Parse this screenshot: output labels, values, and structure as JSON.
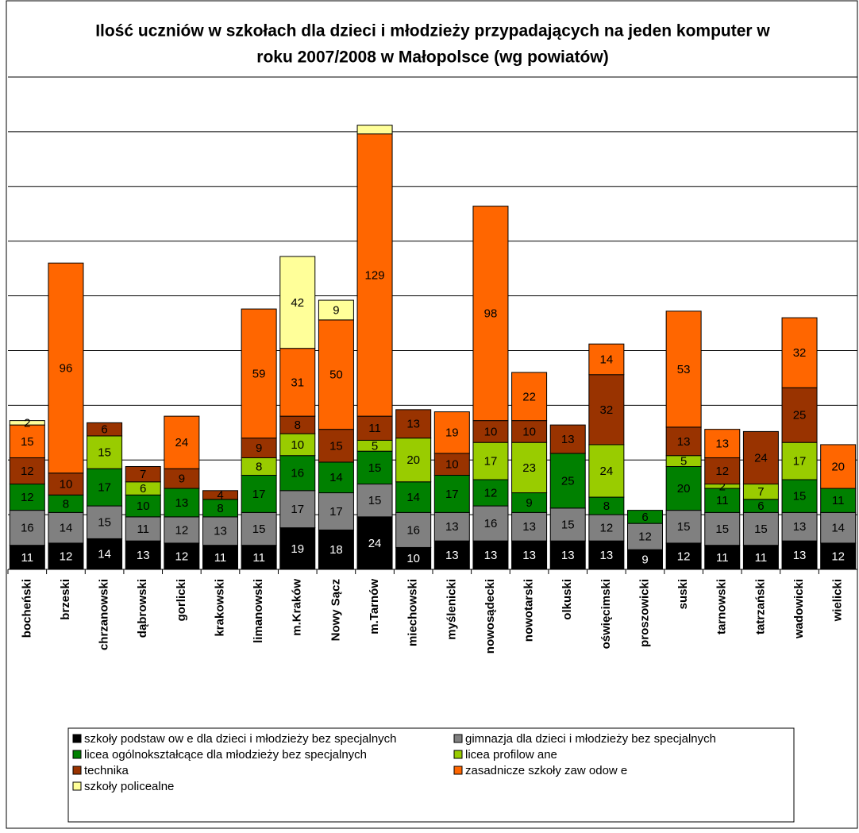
{
  "chart_data": {
    "type": "stacked_bar",
    "title": "Ilość uczniów w szkołach dla dzieci i młodzieży przypadających na jeden komputer w roku 2007/2008 w Małopolsce (wg powiatów)",
    "categories": [
      "bocheński",
      "brzeski",
      "chrzanowski",
      "dąbrowski",
      "gorlicki",
      "krakowski",
      "limanowski",
      "m.Kraków",
      "Nowy Sącz",
      "m.Tarnów",
      "miechowski",
      "myślenicki",
      "nowosądecki",
      "nowotarski",
      "olkuski",
      "oświęcimski",
      "proszowicki",
      "suski",
      "tarnowski",
      "tatrzański",
      "wadowicki",
      "wielicki"
    ],
    "series": [
      {
        "name": "szkoły podstaw ow e dla dzieci i młodzieży bez specjalnych",
        "color": "#000000",
        "values": [
          11,
          12,
          14,
          13,
          12,
          11,
          11,
          19,
          18,
          24,
          10,
          13,
          13,
          13,
          13,
          13,
          9,
          12,
          11,
          11,
          13,
          12
        ]
      },
      {
        "name": "gimnazja dla dzieci i młodzieży bez specjalnych",
        "color": "#808080",
        "values": [
          16,
          14,
          15,
          11,
          12,
          13,
          15,
          17,
          17,
          15,
          16,
          13,
          16,
          13,
          15,
          12,
          12,
          15,
          15,
          15,
          13,
          14
        ]
      },
      {
        "name": "licea ogólnokształcące dla młodzieży bez specjalnych",
        "color": "#008000",
        "values": [
          12,
          8,
          17,
          10,
          13,
          8,
          17,
          16,
          14,
          15,
          14,
          17,
          12,
          9,
          25,
          8,
          6,
          20,
          11,
          6,
          15,
          11
        ]
      },
      {
        "name": "licea profilow ane",
        "color": "#99cc00",
        "values": [
          null,
          null,
          15,
          6,
          null,
          null,
          8,
          10,
          null,
          5,
          20,
          null,
          17,
          23,
          null,
          24,
          null,
          5,
          2,
          7,
          17,
          null
        ]
      },
      {
        "name": "technika",
        "color": "#993300",
        "values": [
          12,
          10,
          6,
          7,
          9,
          4,
          9,
          8,
          15,
          11,
          13,
          10,
          10,
          10,
          13,
          32,
          null,
          13,
          12,
          24,
          25,
          null
        ]
      },
      {
        "name": "zasadnicze szkoły zaw odow e",
        "color": "#ff6600",
        "values": [
          15,
          96,
          null,
          null,
          24,
          null,
          59,
          31,
          50,
          129,
          null,
          19,
          98,
          22,
          null,
          14,
          null,
          53,
          13,
          null,
          32,
          20
        ]
      },
      {
        "name": "szkoły policealne",
        "color": "#ffff99",
        "values": [
          2,
          null,
          null,
          null,
          null,
          null,
          null,
          42,
          9,
          4,
          null,
          null,
          null,
          null,
          null,
          null,
          null,
          null,
          null,
          null,
          null,
          null
        ],
        "value_labels": [
          "2",
          null,
          null,
          null,
          null,
          null,
          null,
          "42",
          "9",
          null,
          null,
          null,
          null,
          null,
          null,
          null,
          null,
          null,
          null,
          null,
          null,
          null
        ]
      }
    ],
    "ylim": [
      0,
      225
    ],
    "yticks": [
      0,
      25,
      50,
      75,
      100,
      125,
      150,
      175,
      200,
      225
    ],
    "grid": true
  }
}
